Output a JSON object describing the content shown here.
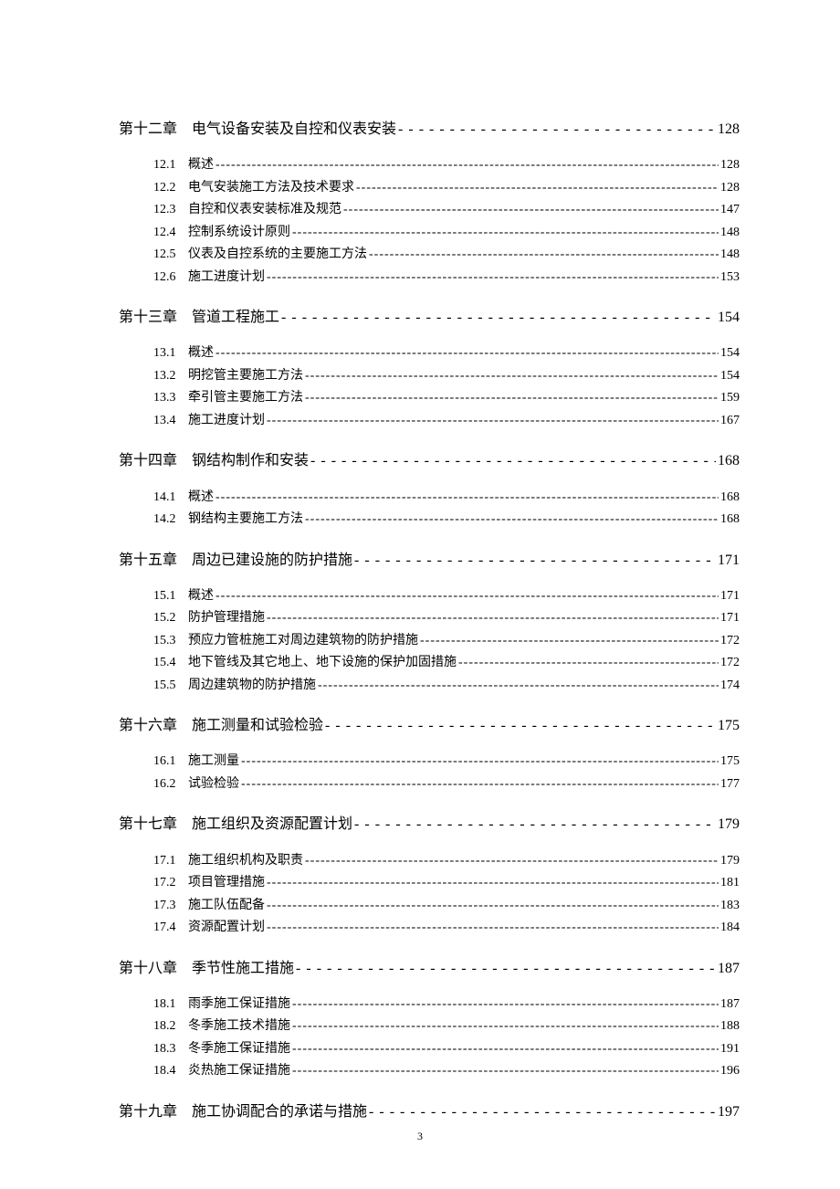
{
  "page_number": "3",
  "leader_char_chapter": " -",
  "leader_char_section": "-",
  "toc": [
    {
      "chapter_label": "第十二章",
      "chapter_title": "电气设备安装及自控和仪表安装",
      "page": "128",
      "sections": [
        {
          "num": "12.1",
          "title": "概述",
          "page": "128"
        },
        {
          "num": "12.2",
          "title": "电气安装施工方法及技术要求",
          "page": "128"
        },
        {
          "num": "12.3",
          "title": "自控和仪表安装标准及规范",
          "page": "147"
        },
        {
          "num": "12.4",
          "title": "控制系统设计原则",
          "page": "148"
        },
        {
          "num": "12.5",
          "title": "仪表及自控系统的主要施工方法",
          "page": "148"
        },
        {
          "num": "12.6",
          "title": "施工进度计划",
          "page": "153"
        }
      ]
    },
    {
      "chapter_label": "第十三章",
      "chapter_title": "管道工程施工",
      "page": "154",
      "sections": [
        {
          "num": "13.1",
          "title": "概述",
          "page": "154"
        },
        {
          "num": "13.2",
          "title": "明挖管主要施工方法",
          "page": "154"
        },
        {
          "num": "13.3",
          "title": "牵引管主要施工方法",
          "page": "159"
        },
        {
          "num": "13.4",
          "title": "施工进度计划",
          "page": "167"
        }
      ]
    },
    {
      "chapter_label": "第十四章",
      "chapter_title": "钢结构制作和安装",
      "page": "168",
      "sections": [
        {
          "num": "14.1",
          "title": "概述",
          "page": "168"
        },
        {
          "num": "14.2",
          "title": "钢结构主要施工方法",
          "page": "168"
        }
      ]
    },
    {
      "chapter_label": "第十五章",
      "chapter_title": "周边已建设施的防护措施",
      "page": "171",
      "sections": [
        {
          "num": "15.1",
          "title": "概述",
          "page": "171"
        },
        {
          "num": "15.2",
          "title": "防护管理措施",
          "page": "171"
        },
        {
          "num": "15.3",
          "title": "预应力管桩施工对周边建筑物的防护措施",
          "page": "172"
        },
        {
          "num": "15.4",
          "title": "地下管线及其它地上、地下设施的保护加固措施",
          "page": "172"
        },
        {
          "num": "15.5",
          "title": "周边建筑物的防护措施",
          "page": "174"
        }
      ]
    },
    {
      "chapter_label": "第十六章",
      "chapter_title": "施工测量和试验检验",
      "page": "175",
      "sections": [
        {
          "num": "16.1",
          "title": "施工测量",
          "page": "175"
        },
        {
          "num": "16.2",
          "title": "试验检验",
          "page": "177"
        }
      ]
    },
    {
      "chapter_label": "第十七章",
      "chapter_title": "施工组织及资源配置计划",
      "page": "179",
      "sections": [
        {
          "num": "17.1",
          "title": "施工组织机构及职责",
          "page": "179"
        },
        {
          "num": "17.2",
          "title": "项目管理措施",
          "page": "181"
        },
        {
          "num": "17.3",
          "title": "施工队伍配备",
          "page": "183"
        },
        {
          "num": "17.4",
          "title": "资源配置计划",
          "page": "184"
        }
      ]
    },
    {
      "chapter_label": "第十八章",
      "chapter_title": "季节性施工措施",
      "page": "187",
      "sections": [
        {
          "num": "18.1",
          "title": "雨季施工保证措施",
          "page": "187"
        },
        {
          "num": "18.2",
          "title": "冬季施工技术措施",
          "page": "188"
        },
        {
          "num": "18.3",
          "title": "冬季施工保证措施",
          "page": "191"
        },
        {
          "num": "18.4",
          "title": "炎热施工保证措施",
          "page": "196"
        }
      ]
    },
    {
      "chapter_label": "第十九章",
      "chapter_title": "施工协调配合的承诺与措施",
      "page": "197",
      "sections": []
    }
  ]
}
